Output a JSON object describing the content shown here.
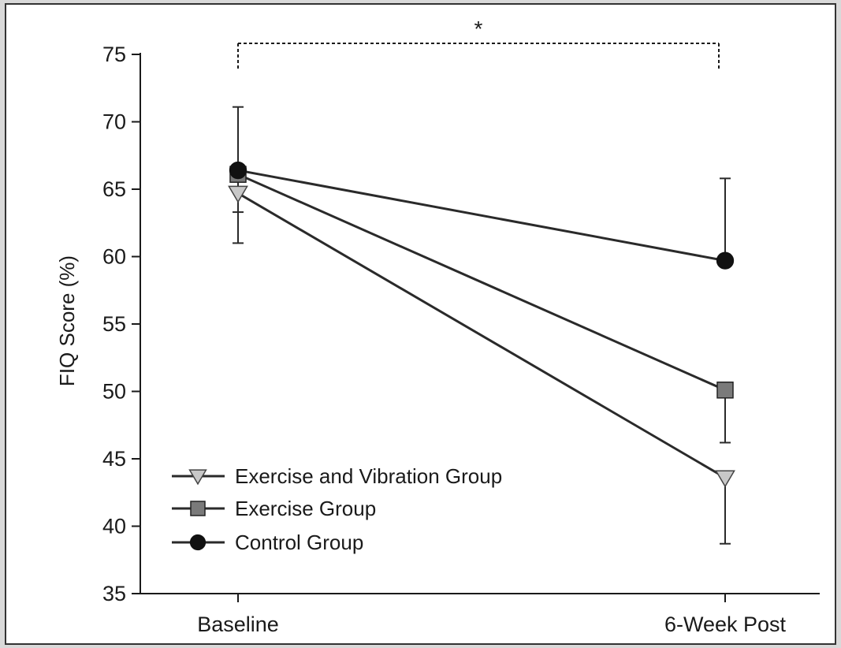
{
  "chart_data": {
    "type": "line",
    "title": "",
    "xlabel": "",
    "ylabel": "FIQ Score (%)",
    "categories": [
      "Baseline",
      "6-Week Post"
    ],
    "ylim": [
      35,
      75
    ],
    "yticks": [
      35,
      40,
      45,
      50,
      55,
      60,
      65,
      70,
      75
    ],
    "grid": false,
    "legend_position": "bottom-left",
    "series": [
      {
        "name": "Exercise and Vibration Group",
        "marker": "triangle-down",
        "marker_color": "#c8c8c8",
        "values": [
          64.7,
          43.6
        ],
        "error_upper": [
          null,
          null
        ],
        "error_lower": [
          61.0,
          38.7
        ]
      },
      {
        "name": "Exercise Group",
        "marker": "square",
        "marker_color": "#7a7a7a",
        "values": [
          66.1,
          50.1
        ],
        "error_upper": [
          null,
          null
        ],
        "error_lower": [
          63.3,
          46.2
        ]
      },
      {
        "name": "Control Group",
        "marker": "circle",
        "marker_color": "#111111",
        "values": [
          66.4,
          59.7
        ],
        "error_upper": [
          71.1,
          65.8
        ],
        "error_lower": [
          null,
          null
        ]
      }
    ],
    "annotations": [
      {
        "text": "*",
        "type": "significance-bracket",
        "from": "Baseline",
        "to": "6-Week Post"
      }
    ]
  },
  "colors": {
    "line": "#2a2a2a",
    "axis": "#1a1a1a"
  }
}
